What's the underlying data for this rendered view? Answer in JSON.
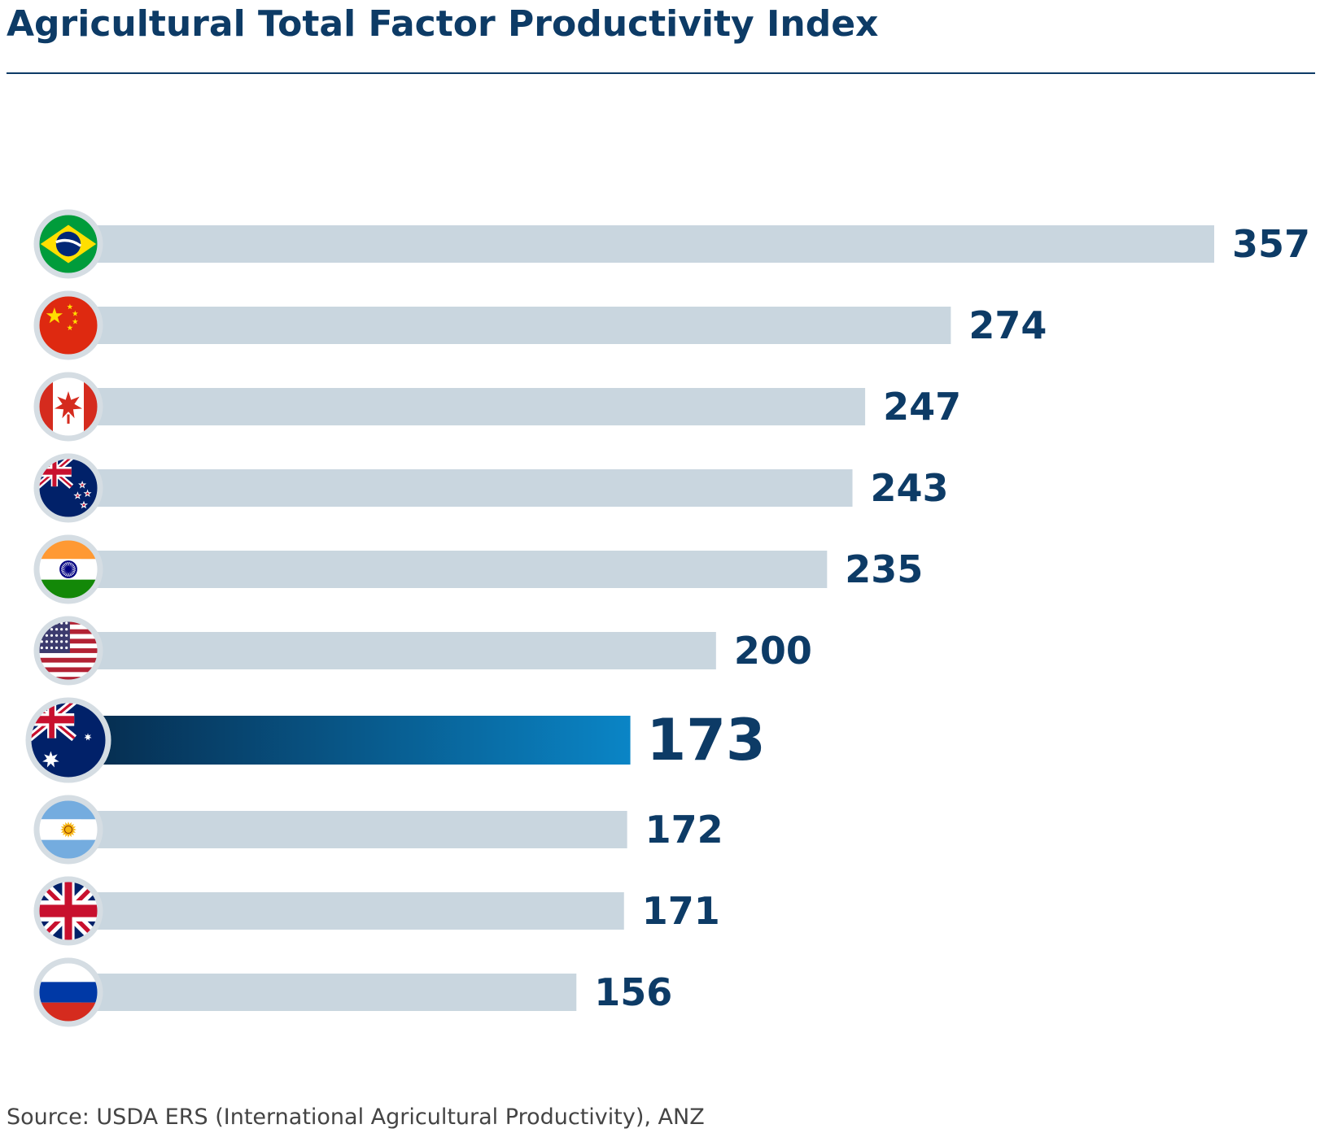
{
  "title": "Agricultural Total Factor Productivity Index",
  "source": "Source: USDA ERS (International Agricultural Productivity), ANZ",
  "colors": {
    "title": "#0d3b66",
    "bar": "#c9d6df",
    "highlight_start": "#062b4d",
    "highlight_end": "#0a85c6",
    "value_label": "#0d3b66"
  },
  "chart_data": {
    "type": "bar",
    "orientation": "horizontal",
    "title": "Agricultural Total Factor Productivity Index",
    "categories": [
      "Brazil",
      "China",
      "Canada",
      "New Zealand",
      "India",
      "United States",
      "Australia",
      "Argentina",
      "United Kingdom",
      "Russia"
    ],
    "values": [
      357,
      274,
      247,
      243,
      235,
      200,
      173,
      172,
      171,
      156
    ],
    "value_labels": [
      "357",
      "274",
      "247",
      "243",
      "235",
      "200",
      "173",
      "172",
      "171",
      "156"
    ],
    "icons": [
      "brazil-flag-icon",
      "china-flag-icon",
      "canada-flag-icon",
      "new-zealand-flag-icon",
      "india-flag-icon",
      "usa-flag-icon",
      "australia-flag-icon",
      "argentina-flag-icon",
      "uk-flag-icon",
      "russia-flag-icon"
    ],
    "highlight": "Australia",
    "xlim": [
      0,
      357
    ],
    "grid": false,
    "legend": "none"
  }
}
